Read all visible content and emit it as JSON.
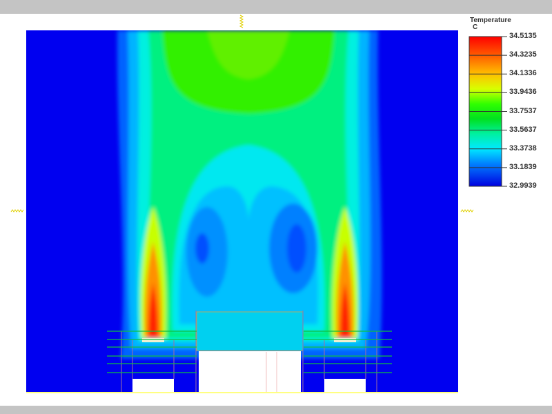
{
  "chart_data": {
    "type": "heatmap",
    "legend": {
      "title": "Temperature",
      "unit": "C",
      "placement": "right",
      "levels": [
        "34.5135",
        "34.3235",
        "34.1336",
        "33.9436",
        "33.7537",
        "33.5637",
        "33.3738",
        "33.1839",
        "32.9939"
      ],
      "range": [
        32.9939,
        34.5135
      ],
      "colors": [
        "#ff0000",
        "#ff8c00",
        "#ffe000",
        "#c8ff00",
        "#00e000",
        "#00e060",
        "#00f0c8",
        "#00d8ff",
        "#0090ff",
        "#0000ff"
      ]
    },
    "description_colors": {
      "ambient": "#0000ff",
      "solid": "#ffffff",
      "outline": "#00cc44"
    }
  }
}
